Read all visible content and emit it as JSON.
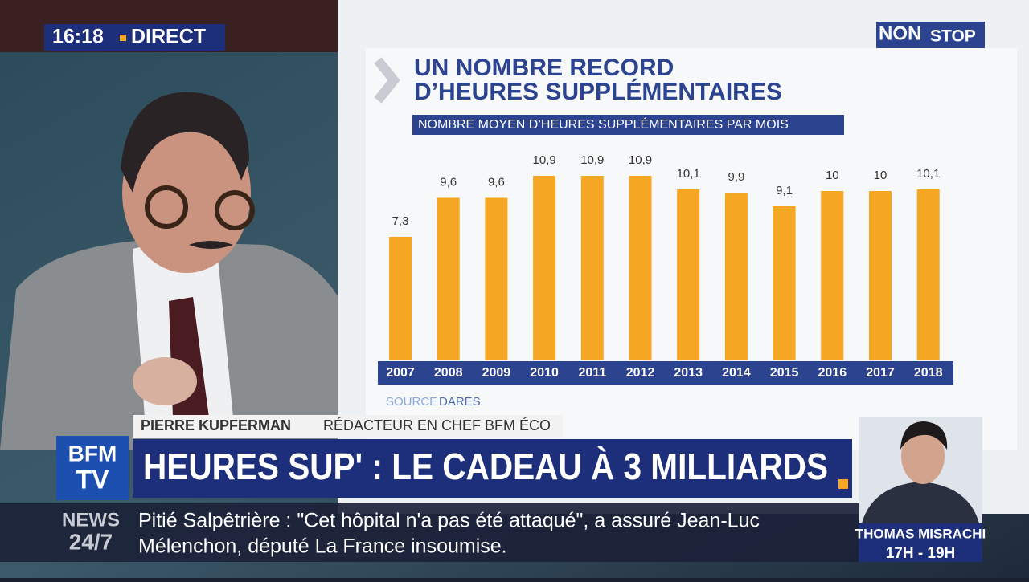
{
  "chart_data": {
    "type": "bar",
    "title": [
      "UN NOMBRE RECORD",
      "D’HEURES SUPPLÉMENTAIRES"
    ],
    "subtitle": "NOMBRE MOYEN D’HEURES SUPPLÉMENTAIRES PAR MOIS",
    "categories": [
      "2007",
      "2008",
      "2009",
      "2010",
      "2011",
      "2012",
      "2013",
      "2014",
      "2015",
      "2016",
      "2017",
      "2018"
    ],
    "values": [
      7.3,
      9.6,
      9.6,
      10.9,
      10.9,
      10.9,
      10.1,
      9.9,
      9.1,
      10,
      10,
      10.1
    ],
    "value_labels": [
      "7,3",
      "9,6",
      "9,6",
      "10,9",
      "10,9",
      "10,9",
      "10,1",
      "9,9",
      "9,1",
      "10",
      "10",
      "10,1"
    ],
    "color": "#f5a623",
    "source_label": "SOURCE",
    "source": "DARES"
  },
  "broadcast": {
    "time": "16:18",
    "live": "DIRECT",
    "channel_tag": [
      "NON",
      "STOP"
    ],
    "speaker_name": "PIERRE KUPFERMAN",
    "speaker_role": "RÉDACTEUR EN CHEF BFM ÉCO",
    "headline": "HEURES SUP' : LE CADEAU À 3 MILLIARDS",
    "logo": [
      "BFM",
      "TV"
    ],
    "news_tag": [
      "NEWS",
      "24/7"
    ],
    "ticker": [
      "Pitié Salpêtrière : \"Cet hôpital n'a pas été attaqué\", a assuré Jean-Luc",
      "Mélenchon, député La France insoumise."
    ],
    "next_host": "THOMAS MISRACHI",
    "next_slot": "17H - 19H"
  }
}
